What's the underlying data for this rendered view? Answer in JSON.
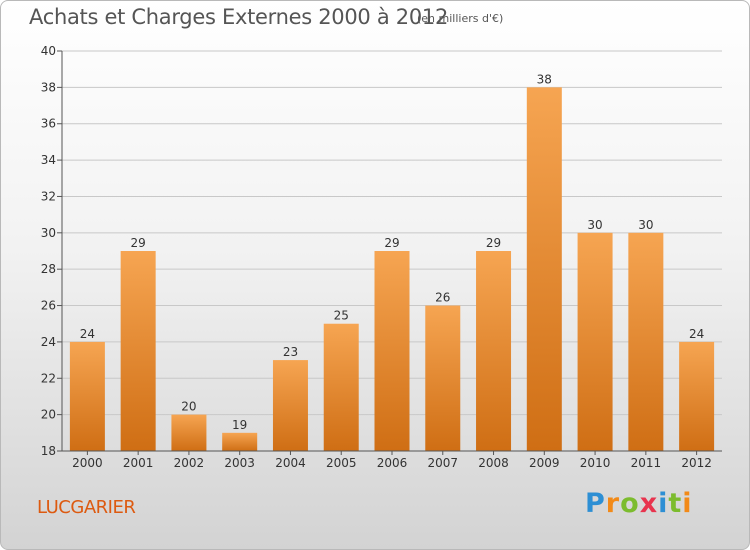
{
  "header": {
    "title": "Achats et Charges Externes 2000 à 2012",
    "subtitle": "(en milliers d'€)"
  },
  "commune": "LUCGARIER",
  "logo": {
    "text": "Proxiti",
    "letters": [
      "P",
      "r",
      "o",
      "x",
      "i",
      "t",
      "i"
    ],
    "colors": [
      "#2d8fd4",
      "#f28a18",
      "#7cbc2e",
      "#e8344e",
      "#2d8fd4",
      "#7cbc2e",
      "#f28a18"
    ]
  },
  "colors": {
    "bar_light": "#f6a552",
    "bar_dark": "#cf6e14",
    "axis": "#555555",
    "grid": "#c8c8c8",
    "text": "#333333"
  },
  "chart_data": {
    "type": "bar",
    "categories": [
      "2000",
      "2001",
      "2002",
      "2003",
      "2004",
      "2005",
      "2006",
      "2007",
      "2008",
      "2009",
      "2010",
      "2011",
      "2012"
    ],
    "values": [
      24,
      29,
      20,
      19,
      23,
      25,
      29,
      26,
      29,
      38,
      30,
      30,
      24
    ],
    "data_labels": [
      "24",
      "29",
      "20",
      "19",
      "23",
      "25",
      "29",
      "26",
      "29",
      "38",
      "30",
      "30",
      "24"
    ],
    "ylim": [
      18,
      40
    ],
    "yticks": [
      18,
      20,
      22,
      24,
      26,
      28,
      30,
      32,
      34,
      36,
      38,
      40
    ],
    "grid": true,
    "legend": "none"
  }
}
